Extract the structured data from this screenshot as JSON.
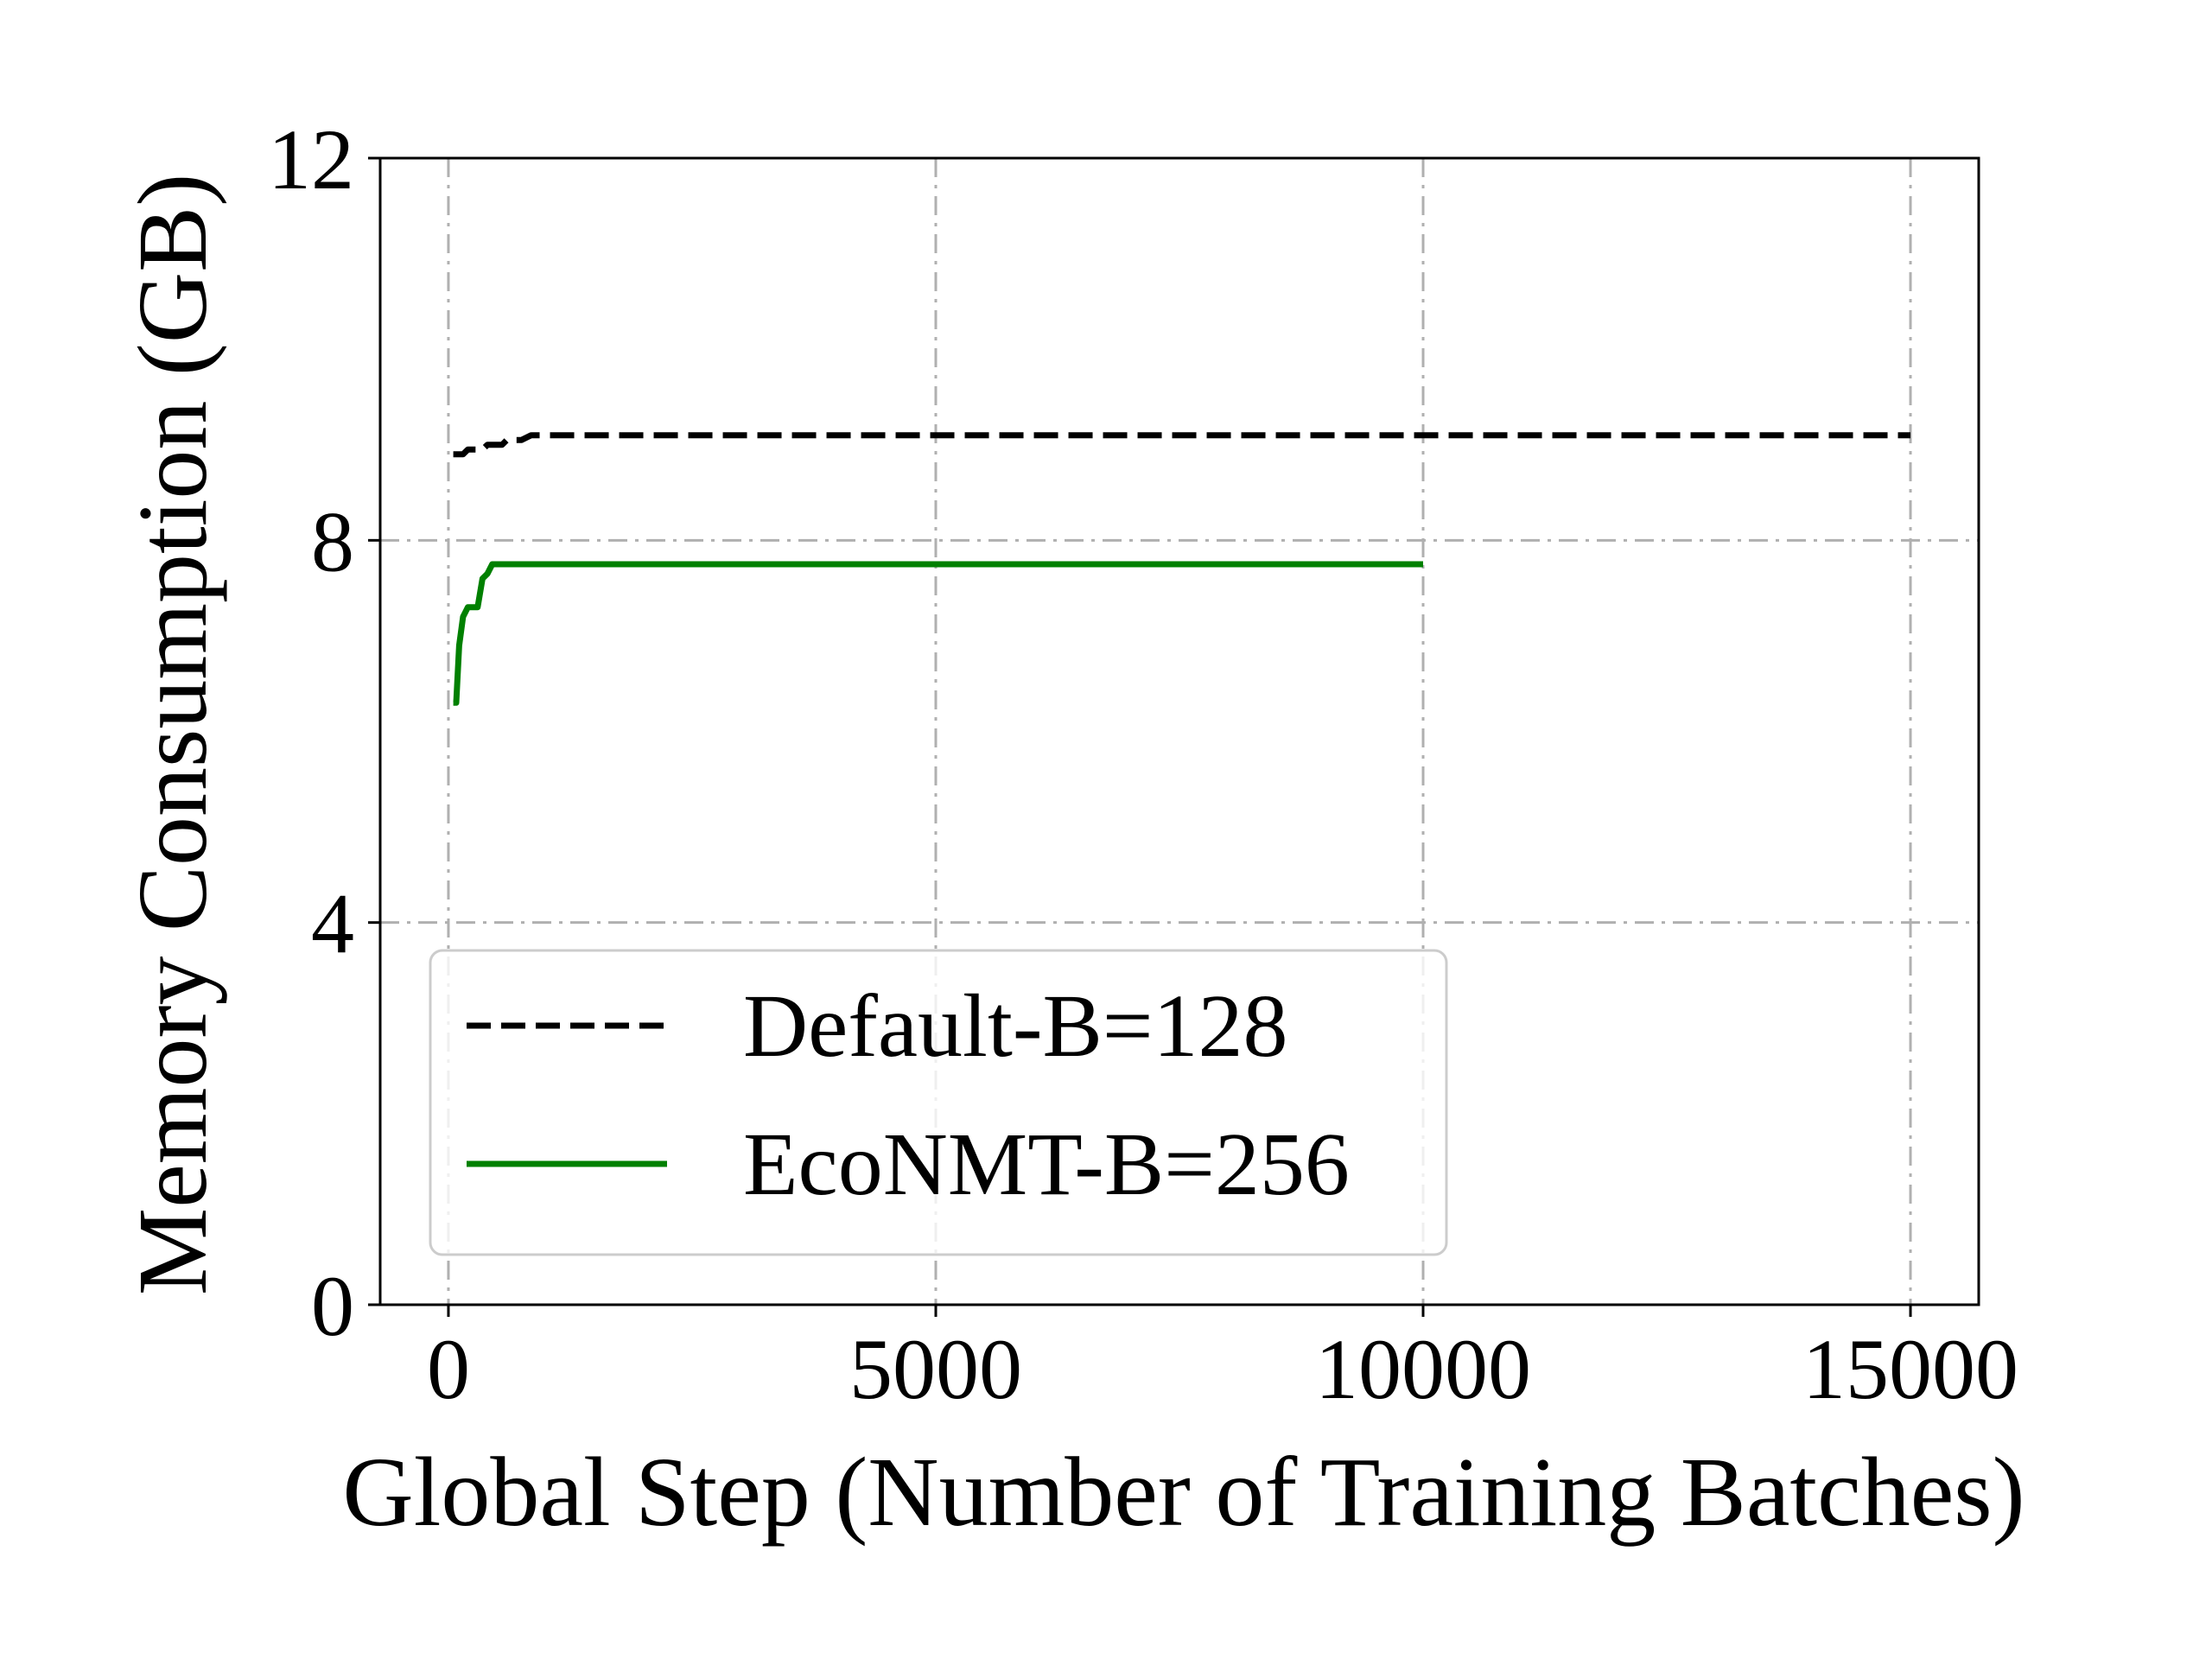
{
  "chart_data": {
    "type": "line",
    "title": "",
    "xlabel": "Global Step (Number of Training Batches)",
    "ylabel": "Memory Consumption (GB)",
    "xlim": [
      -700,
      15700
    ],
    "ylim": [
      0,
      12
    ],
    "xticks": [
      0,
      5000,
      10000,
      15000
    ],
    "yticks": [
      0,
      4,
      8,
      12
    ],
    "grid": true,
    "legend_position": "lower-left",
    "series": [
      {
        "name": "Default-B=128",
        "style": "dashed",
        "color": "#000000",
        "points": [
          [
            50,
            8.9
          ],
          [
            150,
            8.9
          ],
          [
            200,
            8.95
          ],
          [
            350,
            8.95
          ],
          [
            400,
            9.0
          ],
          [
            550,
            9.0
          ],
          [
            600,
            9.05
          ],
          [
            750,
            9.05
          ],
          [
            850,
            9.1
          ],
          [
            15000,
            9.1
          ]
        ]
      },
      {
        "name": "EcoNMT-B=256",
        "style": "solid",
        "color": "#008000",
        "points": [
          [
            50,
            6.3
          ],
          [
            80,
            6.3
          ],
          [
            110,
            6.9
          ],
          [
            150,
            7.2
          ],
          [
            200,
            7.3
          ],
          [
            250,
            7.3
          ],
          [
            300,
            7.3
          ],
          [
            350,
            7.6
          ],
          [
            400,
            7.65
          ],
          [
            450,
            7.75
          ],
          [
            10000,
            7.75
          ]
        ]
      }
    ]
  }
}
